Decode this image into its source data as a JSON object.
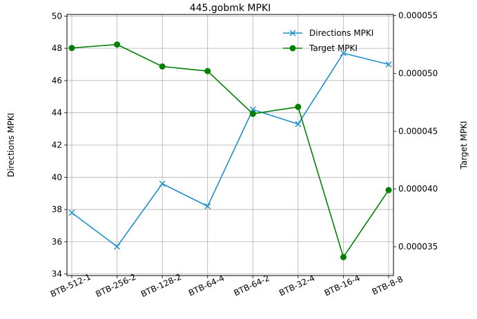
{
  "chart_data": {
    "type": "line",
    "title": "445.gobmk MPKI",
    "categories": [
      "BTB-512-1",
      "BTB-256-2",
      "BTB-128-2",
      "BTB-64-4",
      "BTB-64-2",
      "BTB-32-4",
      "BTB-16-4",
      "BTB-8-8"
    ],
    "xlabel": "",
    "series": [
      {
        "name": "Directions MPKI",
        "axis": "left",
        "color": "#1f8fc8",
        "marker": "x",
        "values": [
          37.8,
          35.7,
          39.6,
          38.2,
          44.2,
          43.3,
          47.7,
          47.0
        ]
      },
      {
        "name": "Target MPKI",
        "axis": "right",
        "color": "#008000",
        "marker": "o",
        "values": [
          5.22e-05,
          5.25e-05,
          5.06e-05,
          5.02e-05,
          4.65e-05,
          4.71e-05,
          3.41e-05,
          3.99e-05
        ]
      }
    ],
    "y_left": {
      "label": "Directions MPKI",
      "ylim": [
        33.9,
        50.1
      ],
      "ticks": [
        34,
        36,
        38,
        40,
        42,
        44,
        46,
        48,
        50
      ],
      "tick_labels": [
        "34",
        "36",
        "38",
        "40",
        "42",
        "44",
        "46",
        "48",
        "50"
      ]
    },
    "y_right": {
      "label": "Target MPKI",
      "ylim": [
        3.25e-05,
        5.51e-05
      ],
      "ticks": [
        3.5e-05,
        4e-05,
        4.5e-05,
        5e-05,
        5.5e-05
      ],
      "tick_labels": [
        "0.000035",
        "0.000040",
        "0.000045",
        "0.000050",
        "0.000055"
      ]
    },
    "grid": true,
    "legend": "top-right"
  }
}
